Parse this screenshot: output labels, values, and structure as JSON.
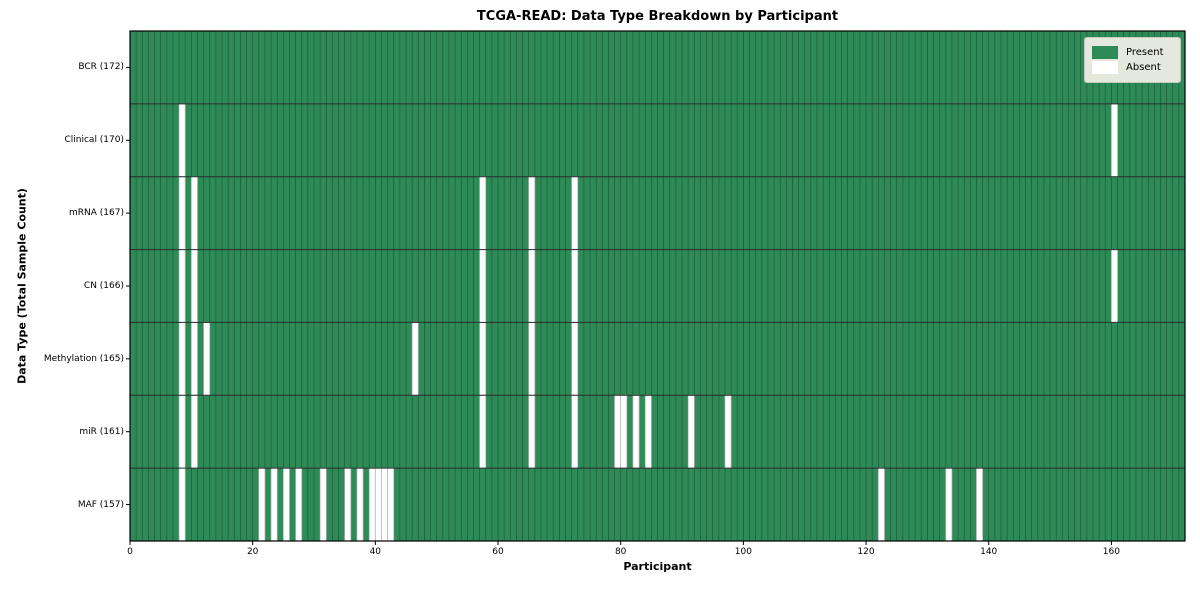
{
  "title": "TCGA-READ: Data Type Breakdown by Participant",
  "x_axis": {
    "label": "Participant",
    "ticks": [
      0,
      20,
      40,
      60,
      80,
      100,
      120,
      140,
      160
    ]
  },
  "y_axis": {
    "label": "Data Type (Total Sample Count)"
  },
  "legend": {
    "present": "Present",
    "absent": "Absent"
  },
  "chart_data": {
    "type": "heatmap",
    "title": "TCGA-READ: Data Type Breakdown by Participant",
    "xlabel": "Participant",
    "ylabel": "Data Type (Total Sample Count)",
    "n_participants": 172,
    "x_ticks": [
      0,
      20,
      40,
      60,
      80,
      100,
      120,
      140,
      160
    ],
    "legend_entries": [
      "Present",
      "Absent"
    ],
    "legend_position": "upper right",
    "rows": [
      {
        "label": "BCR (172)",
        "data_type": "BCR",
        "total_sample_count": 172,
        "absent_participants": []
      },
      {
        "label": "Clinical (170)",
        "data_type": "Clinical",
        "total_sample_count": 170,
        "absent_participants": [
          8,
          160
        ]
      },
      {
        "label": "mRNA (167)",
        "data_type": "mRNA",
        "total_sample_count": 167,
        "absent_participants": [
          8,
          10,
          57,
          65,
          72
        ]
      },
      {
        "label": "CN (166)",
        "data_type": "CN",
        "total_sample_count": 166,
        "absent_participants": [
          8,
          10,
          57,
          65,
          72,
          160
        ]
      },
      {
        "label": "Methylation (165)",
        "data_type": "Methylation",
        "total_sample_count": 165,
        "absent_participants": [
          8,
          10,
          12,
          46,
          57,
          65,
          72
        ]
      },
      {
        "label": "miR (161)",
        "data_type": "miR",
        "total_sample_count": 161,
        "absent_participants": [
          8,
          10,
          57,
          65,
          72,
          79,
          80,
          82,
          84,
          91,
          97
        ]
      },
      {
        "label": "MAF (157)",
        "data_type": "MAF",
        "total_sample_count": 157,
        "absent_participants": [
          8,
          21,
          23,
          25,
          27,
          31,
          35,
          37,
          39,
          40,
          41,
          42,
          122,
          133,
          138
        ]
      }
    ],
    "colors": {
      "present": "#2e8b57",
      "absent": "#ffffff",
      "grid": "#1c5b38",
      "absent_grid": "#b9b9b9",
      "row_line": "#2b2b2b",
      "border": "#000000",
      "tick": "#000000"
    }
  }
}
